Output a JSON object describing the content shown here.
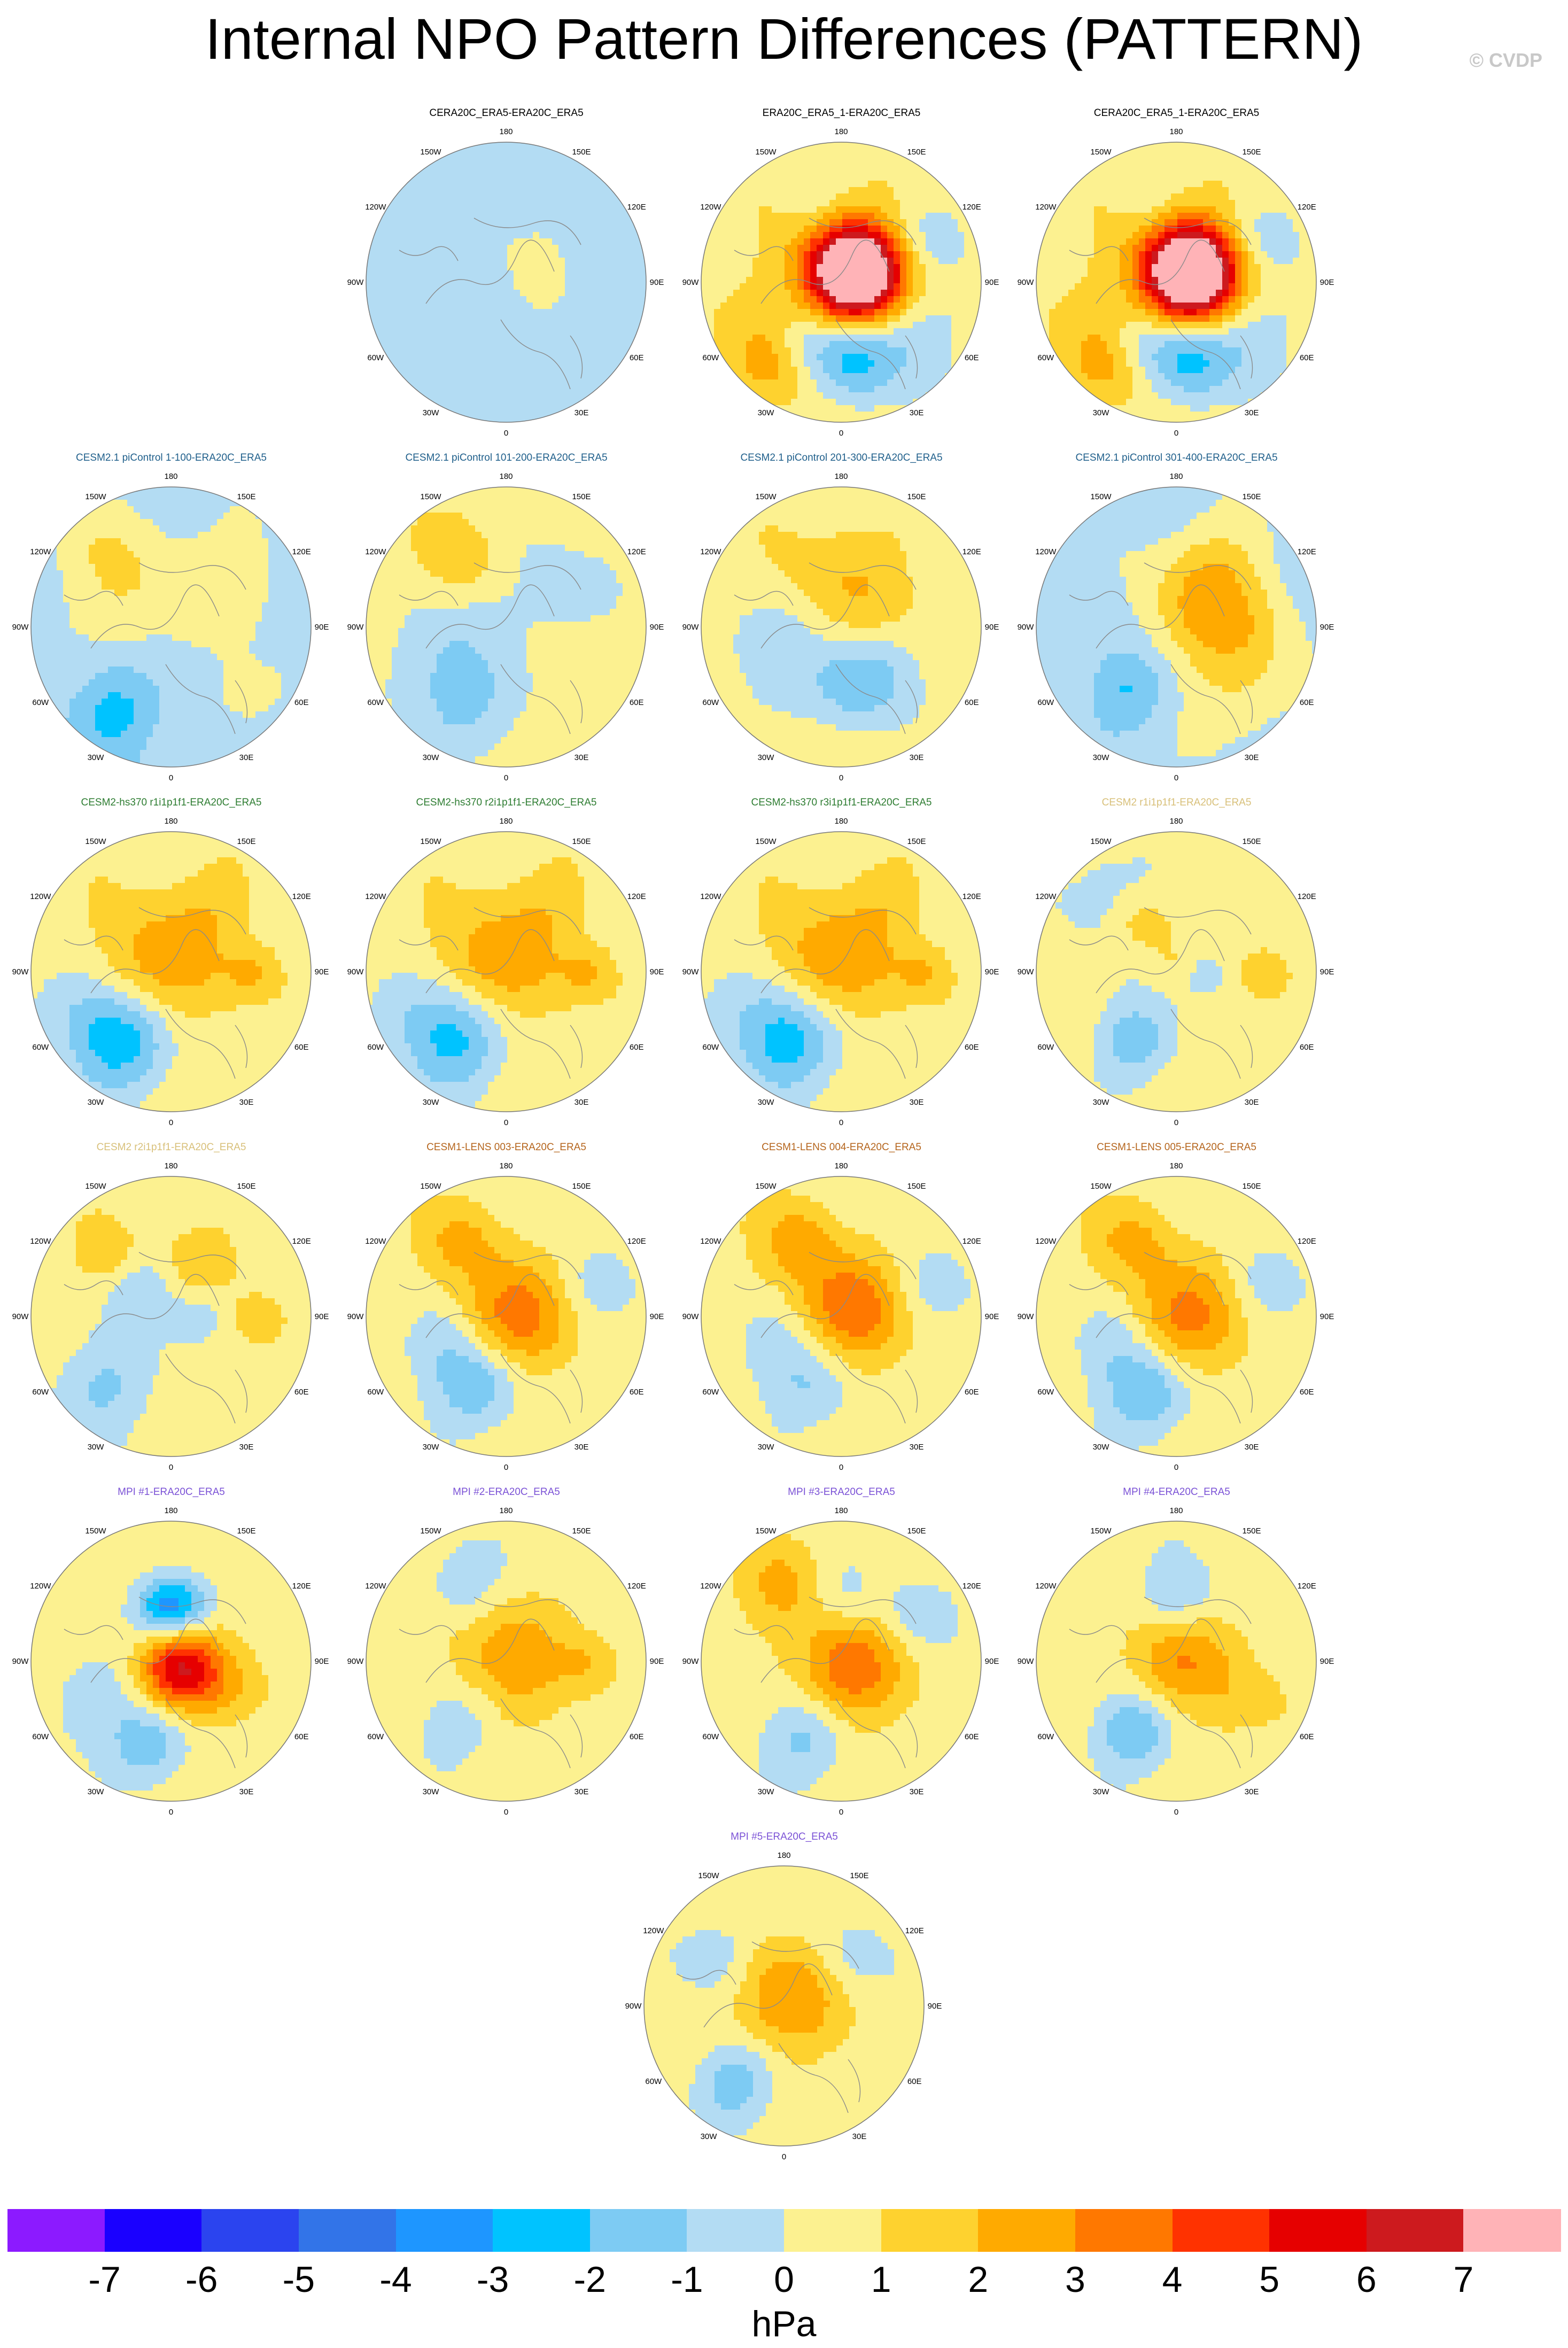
{
  "title": "Internal NPO Pattern Differences (PATTERN)",
  "copyright": "© CVDP",
  "lon_labels": [
    "180",
    "150E",
    "120E",
    "90E",
    "60E",
    "30E",
    "0",
    "30W",
    "60W",
    "90W",
    "120W",
    "150W"
  ],
  "colors": {
    "coast": "#8a8a8a",
    "border": "#777777"
  },
  "chart_data": {
    "type": "heatmap",
    "projection": "north-polar-stereographic",
    "units": "hPa",
    "colorbar": {
      "ticks": [
        "-7",
        "-6",
        "-5",
        "-4",
        "-3",
        "-2",
        "-1",
        "0",
        "1",
        "2",
        "3",
        "4",
        "5",
        "6",
        "7"
      ],
      "colors": [
        "#8c1aff",
        "#1a00ff",
        "#2b44ef",
        "#3274e8",
        "#1e96ff",
        "#00c3ff",
        "#7dcbf3",
        "#b3dcf3",
        "#fcf190",
        "#fed22f",
        "#ffaa00",
        "#ff7800",
        "#ff3200",
        "#e60000",
        "#cd1a1e",
        "#ffb3b7"
      ]
    },
    "panels": [
      {
        "title": "CERA20C_ERA5-ERA20C_ERA5",
        "title_color": "#000000",
        "base": -0.5,
        "blobs": [
          [
            0,
            0,
            0.55,
            0.4
          ]
        ]
      },
      {
        "title": "ERA20C_ERA5_1-ERA20C_ERA5",
        "title_color": "#000000",
        "base": 0.55,
        "blobs": [
          [
            0.1,
            0.06,
            0.22,
            9.2
          ],
          [
            0.05,
            0.12,
            0.35,
            2.5
          ],
          [
            -0.45,
            -0.55,
            0.22,
            2.6
          ],
          [
            0.08,
            -0.55,
            0.22,
            -3.3
          ],
          [
            -0.3,
            -0.45,
            0.18,
            -2.0
          ],
          [
            0.55,
            0.3,
            0.2,
            -1.4
          ],
          [
            -0.2,
            0.55,
            0.18,
            -1.0
          ],
          [
            0.55,
            -0.35,
            0.25,
            -1.2
          ]
        ]
      },
      {
        "title": "CERA20C_ERA5_1-ERA20C_ERA5",
        "title_color": "#000000",
        "base": 0.55,
        "blobs": [
          [
            0.1,
            0.06,
            0.22,
            9.2
          ],
          [
            0.05,
            0.12,
            0.35,
            2.5
          ],
          [
            -0.45,
            -0.55,
            0.22,
            2.6
          ],
          [
            0.08,
            -0.55,
            0.22,
            -3.3
          ],
          [
            -0.3,
            -0.45,
            0.18,
            -2.0
          ],
          [
            0.55,
            0.3,
            0.2,
            -1.4
          ],
          [
            -0.2,
            0.55,
            0.18,
            -1.0
          ],
          [
            0.55,
            -0.35,
            0.25,
            -1.2
          ]
        ]
      },
      {
        "title": "CESM2.1 piControl 1-100-ERA20C_ERA5",
        "title_color": "#1f5f8b",
        "base": -0.55,
        "blobs": [
          [
            -0.4,
            0.5,
            0.3,
            1.4
          ],
          [
            0.45,
            0.35,
            0.3,
            1.2
          ],
          [
            -0.3,
            0.05,
            0.25,
            0.9
          ],
          [
            0.55,
            -0.5,
            0.2,
            1.1
          ],
          [
            -0.4,
            -0.6,
            0.22,
            -1.8
          ]
        ]
      },
      {
        "title": "CESM2.1 piControl 101-200-ERA20C_ERA5",
        "title_color": "#1f5f8b",
        "base": 0.6,
        "blobs": [
          [
            -0.5,
            -0.3,
            0.35,
            -1.4
          ],
          [
            0.3,
            0.25,
            0.3,
            -1.1
          ],
          [
            -0.2,
            -0.6,
            0.25,
            -1.2
          ],
          [
            -0.3,
            0.5,
            0.2,
            1.2
          ]
        ]
      },
      {
        "title": "CESM2.1 piControl 201-300-ERA20C_ERA5",
        "title_color": "#1f5f8b",
        "base": 0.6,
        "blobs": [
          [
            0.05,
            0.3,
            0.3,
            1.4
          ],
          [
            0.1,
            -0.45,
            0.22,
            -2.0
          ],
          [
            -0.5,
            -0.2,
            0.3,
            -1.3
          ],
          [
            0.3,
            -0.25,
            0.2,
            -1.0
          ]
        ]
      },
      {
        "title": "CESM2.1 piControl 301-400-ERA20C_ERA5",
        "title_color": "#1f5f8b",
        "base": -0.4,
        "blobs": [
          [
            0.15,
            0.1,
            0.3,
            2.0
          ],
          [
            0.3,
            0.45,
            0.25,
            1.3
          ],
          [
            0.55,
            0.0,
            0.25,
            1.2
          ],
          [
            -0.35,
            -0.45,
            0.2,
            -1.7
          ],
          [
            0.45,
            -0.5,
            0.25,
            1.2
          ]
        ]
      },
      {
        "title": "CESM2-hs370 r1i1p1f1-ERA20C_ERA5",
        "title_color": "#2e7d32",
        "base": 0.55,
        "blobs": [
          [
            -0.1,
            0.05,
            0.3,
            2.3
          ],
          [
            -0.35,
            -0.5,
            0.25,
            -3.2
          ],
          [
            -0.7,
            -0.25,
            0.25,
            -1.3
          ],
          [
            0.6,
            0.0,
            0.15,
            1.5
          ],
          [
            0.3,
            0.5,
            0.2,
            1.0
          ]
        ]
      },
      {
        "title": "CESM2-hs370 r2i1p1f1-ERA20C_ERA5",
        "title_color": "#2e7d32",
        "base": 0.55,
        "blobs": [
          [
            -0.1,
            0.05,
            0.3,
            2.3
          ],
          [
            -0.35,
            -0.5,
            0.25,
            -2.8
          ],
          [
            -0.7,
            -0.25,
            0.25,
            -1.3
          ],
          [
            0.6,
            0.0,
            0.15,
            1.5
          ],
          [
            0.3,
            0.5,
            0.2,
            1.0
          ]
        ]
      },
      {
        "title": "CESM2-hs370 r3i1p1f1-ERA20C_ERA5",
        "title_color": "#2e7d32",
        "base": 0.55,
        "blobs": [
          [
            -0.1,
            0.05,
            0.3,
            2.4
          ],
          [
            -0.35,
            -0.5,
            0.25,
            -3.0
          ],
          [
            -0.7,
            -0.25,
            0.25,
            -1.3
          ],
          [
            0.6,
            0.0,
            0.15,
            1.5
          ],
          [
            0.3,
            0.5,
            0.2,
            1.0
          ]
        ]
      },
      {
        "title": "CESM2 r1i1p1f1-ERA20C_ERA5",
        "title_color": "#d8c07a",
        "base": 0.55,
        "blobs": [
          [
            -0.5,
            0.55,
            0.25,
            -1.2
          ],
          [
            -0.3,
            -0.5,
            0.2,
            -2.2
          ],
          [
            0.2,
            0.0,
            0.15,
            -1.3
          ],
          [
            0.65,
            0.0,
            0.12,
            1.5
          ],
          [
            -0.25,
            0.35,
            0.15,
            1.3
          ],
          [
            0.0,
            0.05,
            0.12,
            0.8
          ]
        ]
      },
      {
        "title": "CESM2 r2i1p1f1-ERA20C_ERA5",
        "title_color": "#d8c07a",
        "base": 0.55,
        "blobs": [
          [
            -0.5,
            -0.5,
            0.25,
            -1.8
          ],
          [
            -0.2,
            0.2,
            0.18,
            -1.3
          ],
          [
            0.2,
            0.0,
            0.15,
            -1.3
          ],
          [
            0.65,
            0.0,
            0.12,
            1.5
          ],
          [
            0.2,
            0.4,
            0.18,
            1.3
          ],
          [
            -0.45,
            0.45,
            0.15,
            1.2
          ]
        ]
      },
      {
        "title": "CESM1-LENS 003-ERA20C_ERA5",
        "title_color": "#b5651d",
        "base": 0.55,
        "blobs": [
          [
            0.05,
            0.0,
            0.28,
            3.0
          ],
          [
            -0.3,
            0.55,
            0.2,
            1.6
          ],
          [
            -0.2,
            -0.5,
            0.22,
            -2.4
          ],
          [
            -0.5,
            -0.2,
            0.22,
            -1.3
          ],
          [
            0.6,
            0.2,
            0.2,
            -1.0
          ]
        ]
      },
      {
        "title": "CESM1-LENS 004-ERA20C_ERA5",
        "title_color": "#b5651d",
        "base": 0.55,
        "blobs": [
          [
            0.05,
            0.05,
            0.28,
            3.2
          ],
          [
            -0.3,
            0.55,
            0.2,
            1.8
          ],
          [
            -0.2,
            -0.5,
            0.22,
            -1.6
          ],
          [
            -0.5,
            -0.2,
            0.22,
            -1.2
          ],
          [
            0.6,
            0.2,
            0.2,
            -1.0
          ]
        ]
      },
      {
        "title": "CESM1-LENS 005-ERA20C_ERA5",
        "title_color": "#b5651d",
        "base": 0.55,
        "blobs": [
          [
            0.05,
            0.0,
            0.28,
            2.8
          ],
          [
            -0.3,
            0.55,
            0.2,
            1.6
          ],
          [
            -0.2,
            -0.55,
            0.22,
            -2.6
          ],
          [
            -0.5,
            -0.2,
            0.22,
            -1.3
          ],
          [
            0.6,
            0.2,
            0.2,
            -1.0
          ]
        ]
      },
      {
        "title": "MPI #1-ERA20C_ERA5",
        "title_color": "#7b52d6",
        "base": 0.55,
        "blobs": [
          [
            0.05,
            -0.05,
            0.2,
            5.5
          ],
          [
            0.0,
            0.4,
            0.18,
            -4.8
          ],
          [
            0.0,
            0.65,
            0.2,
            1.2
          ],
          [
            -0.15,
            -0.6,
            0.2,
            -2.2
          ],
          [
            -0.6,
            -0.3,
            0.25,
            -1.2
          ],
          [
            0.4,
            -0.2,
            0.2,
            1.2
          ]
        ]
      },
      {
        "title": "MPI #2-ERA20C_ERA5",
        "title_color": "#7b52d6",
        "base": 0.55,
        "blobs": [
          [
            0.0,
            0.0,
            0.3,
            2.2
          ],
          [
            -0.3,
            0.55,
            0.2,
            -1.5
          ],
          [
            -0.35,
            -0.45,
            0.22,
            -1.4
          ],
          [
            0.6,
            0.0,
            0.15,
            1.2
          ]
        ]
      },
      {
        "title": "MPI #3-ERA20C_ERA5",
        "title_color": "#7b52d6",
        "base": 0.55,
        "blobs": [
          [
            0.05,
            -0.05,
            0.28,
            3.2
          ],
          [
            -0.4,
            0.55,
            0.22,
            1.6
          ],
          [
            -0.25,
            -0.55,
            0.22,
            -2.0
          ],
          [
            0.5,
            0.3,
            0.2,
            -1.2
          ],
          [
            0.0,
            0.45,
            0.18,
            -1.2
          ]
        ]
      },
      {
        "title": "MPI #4-ERA20C_ERA5",
        "title_color": "#7b52d6",
        "base": 0.55,
        "blobs": [
          [
            0.0,
            0.0,
            0.25,
            2.6
          ],
          [
            0.0,
            0.45,
            0.2,
            -1.6
          ],
          [
            -0.3,
            -0.5,
            0.2,
            -2.6
          ],
          [
            0.5,
            -0.3,
            0.2,
            1.0
          ]
        ]
      },
      {
        "title": "MPI #5-ERA20C_ERA5",
        "title_color": "#7b52d6",
        "base": 0.55,
        "blobs": [
          [
            0.0,
            0.05,
            0.28,
            2.4
          ],
          [
            -0.5,
            0.35,
            0.2,
            -1.5
          ],
          [
            -0.35,
            -0.55,
            0.2,
            -2.3
          ],
          [
            0.45,
            0.35,
            0.2,
            -1.0
          ]
        ]
      }
    ]
  }
}
